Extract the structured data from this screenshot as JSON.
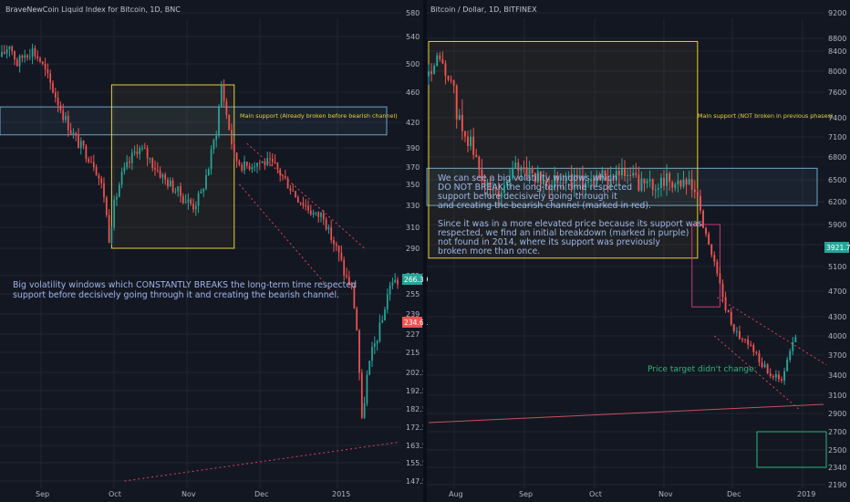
{
  "left": {
    "title": "BraveNewCoin Liquid Index for Bitcoin, 1D, BNC",
    "ticks_y": [
      580,
      540,
      500,
      460,
      420,
      390,
      370,
      350,
      330,
      310,
      290,
      272.5,
      255,
      239,
      227,
      215,
      202.5,
      192.5,
      182.5,
      172.5,
      163.5,
      155.5,
      147.5
    ],
    "months": [
      "Sep",
      "Oct",
      "Nov",
      "Dec",
      "2015"
    ],
    "price_badge": "266.39",
    "low_badge": "234.61",
    "support_label": "Main support (Already broken before bearish channel)",
    "annotation": [
      "Big volatility windows which CONSTANTLY BREAKS the long-term time respected",
      "support before decisively going through it and creating the bearish channel."
    ]
  },
  "right": {
    "title": "Bitcoin / Dollar, 1D, BITFINEX",
    "ticks_y": [
      9200,
      8800,
      8400,
      8000,
      7600,
      7400,
      7100,
      6800,
      6500,
      6200,
      5900,
      5500,
      5100,
      4700,
      4300,
      4000,
      3700,
      3400,
      3100,
      2900,
      2700,
      2500,
      2340,
      2190,
      2050,
      1910,
      1790
    ],
    "months": [
      "Aug",
      "Sep",
      "Oct",
      "Nov",
      "Dec",
      "2019"
    ],
    "price_badge": "3921.7",
    "support_label": "Main support (NOT broken in previous phases)",
    "annotation": [
      "We can see a big volatility windows which",
      "DO NOT BREAK the long-term time respected",
      "support before decisively going through it",
      "and creating the bearish channel (marked in red).",
      "",
      "Since it was in a more elevated price because its support was",
      "respected, we find an initial breakdown (marked in purple)",
      "not found in 2014,  where its support was previously",
      "broken more than once."
    ],
    "target_label": "Price target didn't change:"
  },
  "colors": {
    "background": "#131722",
    "grid": "#1f2433",
    "up": "#26a69a",
    "down": "#ef5350",
    "volatility_box": "#e6cf3a",
    "support_box": "#6ea6c8",
    "breakdown_box": "#c63a7a",
    "channel": "#e0415a",
    "target_box": "#2fb67a"
  },
  "chart_data": [
    {
      "type": "candlestick",
      "title": "BraveNewCoin Liquid Index for Bitcoin, 1D, BNC",
      "x_labels": [
        "Sep",
        "Oct",
        "Nov",
        "Dec",
        "2015"
      ],
      "y_scale": "log",
      "ylim": [
        147.5,
        580
      ],
      "path": [
        [
          0,
          510
        ],
        [
          3,
          530
        ],
        [
          6,
          500
        ],
        [
          9,
          515
        ],
        [
          12,
          520
        ],
        [
          15,
          505
        ],
        [
          18,
          480
        ],
        [
          21,
          455
        ],
        [
          24,
          430
        ],
        [
          27,
          410
        ],
        [
          30,
          395
        ],
        [
          33,
          385
        ],
        [
          36,
          375
        ],
        [
          40,
          340
        ],
        [
          42,
          300
        ],
        [
          44,
          330
        ],
        [
          47,
          360
        ],
        [
          50,
          375
        ],
        [
          53,
          390
        ],
        [
          56,
          385
        ],
        [
          60,
          370
        ],
        [
          64,
          355
        ],
        [
          68,
          345
        ],
        [
          72,
          335
        ],
        [
          75,
          330
        ],
        [
          78,
          340
        ],
        [
          81,
          370
        ],
        [
          84,
          410
        ],
        [
          86,
          470
        ],
        [
          88,
          430
        ],
        [
          91,
          380
        ],
        [
          95,
          370
        ],
        [
          99,
          375
        ],
        [
          103,
          375
        ],
        [
          107,
          370
        ],
        [
          111,
          355
        ],
        [
          115,
          340
        ],
        [
          119,
          330
        ],
        [
          123,
          320
        ],
        [
          126,
          322
        ],
        [
          128,
          305
        ],
        [
          131,
          290
        ],
        [
          134,
          275
        ],
        [
          137,
          260
        ],
        [
          139,
          230
        ],
        [
          141,
          175
        ],
        [
          143,
          200
        ],
        [
          145,
          215
        ],
        [
          147,
          225
        ],
        [
          149,
          235
        ],
        [
          151,
          255
        ],
        [
          153,
          268
        ],
        [
          155,
          266
        ]
      ],
      "annotations": [
        {
          "label": "Main support (Already broken before bearish channel)",
          "zone": [
            405,
            440
          ]
        },
        {
          "label": "Big volatility window",
          "box": {
            "from": 43,
            "to": 91,
            "low": 290,
            "high": 470
          }
        },
        {
          "label": "Bearish channel",
          "upper": [
            [
              96,
              395
            ],
            [
              142,
              290
            ]
          ],
          "lower": [
            [
              93,
              350
            ],
            [
              130,
              255
            ]
          ]
        },
        {
          "label": "Long-term trendline",
          "points": [
            [
              48,
              147.5
            ],
            [
              155,
              165
            ]
          ]
        }
      ],
      "last_price": 266.39,
      "marked_price": 234.61
    },
    {
      "type": "candlestick",
      "title": "Bitcoin / Dollar, 1D, BITFINEX",
      "x_labels": [
        "Aug",
        "Sep",
        "Oct",
        "Nov",
        "Dec",
        "2019"
      ],
      "y_scale": "log",
      "ylim": [
        1790,
        9200
      ],
      "path": [
        [
          0,
          7900
        ],
        [
          3,
          8200
        ],
        [
          6,
          8000
        ],
        [
          9,
          7600
        ],
        [
          12,
          7200
        ],
        [
          15,
          7000
        ],
        [
          18,
          6600
        ],
        [
          21,
          6400
        ],
        [
          24,
          6300
        ],
        [
          27,
          6400
        ],
        [
          30,
          6600
        ],
        [
          33,
          6700
        ],
        [
          36,
          6600
        ],
        [
          39,
          6500
        ],
        [
          42,
          6400
        ],
        [
          45,
          6550
        ],
        [
          48,
          6500
        ],
        [
          51,
          6500
        ],
        [
          54,
          6450
        ],
        [
          57,
          6500
        ],
        [
          60,
          6550
        ],
        [
          63,
          6500
        ],
        [
          66,
          6600
        ],
        [
          69,
          6550
        ],
        [
          72,
          6550
        ],
        [
          75,
          6450
        ],
        [
          78,
          6400
        ],
        [
          81,
          6450
        ],
        [
          84,
          6500
        ],
        [
          87,
          6480
        ],
        [
          90,
          6450
        ],
        [
          93,
          6400
        ],
        [
          96,
          6300
        ],
        [
          98,
          5800
        ],
        [
          100,
          5500
        ],
        [
          102,
          5200
        ],
        [
          104,
          4800
        ],
        [
          106,
          4400
        ],
        [
          108,
          4200
        ],
        [
          111,
          4000
        ],
        [
          114,
          3900
        ],
        [
          117,
          3700
        ],
        [
          120,
          3500
        ],
        [
          123,
          3400
        ],
        [
          126,
          3300
        ],
        [
          128,
          3600
        ],
        [
          130,
          3900
        ],
        [
          131,
          3922
        ]
      ],
      "annotations": [
        {
          "label": "Main support (NOT broken in previous phases)",
          "zone": [
            6150,
            6650
          ]
        },
        {
          "label": "Big volatility window",
          "box": {
            "from": 0,
            "to": 96,
            "low": 5250,
            "high": 8700
          }
        },
        {
          "label": "Initial breakdown (purple)",
          "box": {
            "from": 94,
            "to": 104,
            "low": 4450,
            "high": 5900
          }
        },
        {
          "label": "Bearish channel",
          "upper": [
            [
              103,
              4600
            ],
            [
              142,
              3550
            ]
          ],
          "lower": [
            [
              102,
              4000
            ],
            [
              132,
              2950
            ]
          ]
        },
        {
          "label": "Price target didn't change:",
          "zone": [
            2340,
            2700
          ]
        }
      ],
      "last_price": 3921.7
    }
  ]
}
